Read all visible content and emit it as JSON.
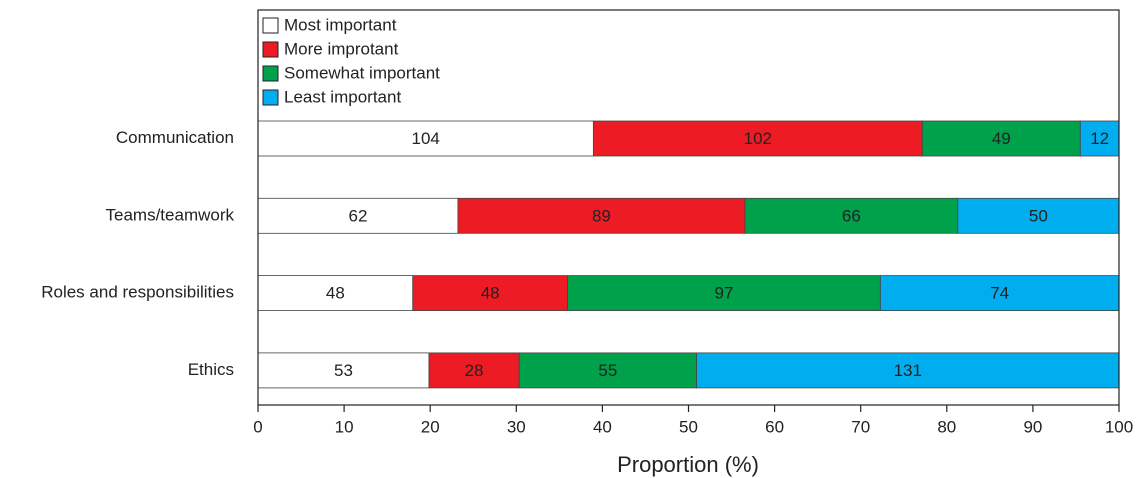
{
  "chart_data": {
    "type": "bar",
    "orientation": "horizontal",
    "stacked": "percent",
    "categories": [
      "Communication",
      "Teams/teamwork",
      "Roles and responsibilities",
      "Ethics"
    ],
    "series": [
      {
        "name": "Most important",
        "color": "#ffffff",
        "values": [
          104,
          62,
          48,
          53
        ]
      },
      {
        "name": "More improtant",
        "color": "#ed1c24",
        "values": [
          102,
          89,
          48,
          28
        ]
      },
      {
        "name": "Somewhat important",
        "color": "#00a14b",
        "values": [
          49,
          66,
          97,
          55
        ]
      },
      {
        "name": "Least important",
        "color": "#00aeef",
        "values": [
          12,
          50,
          74,
          131
        ]
      }
    ],
    "xlabel": "Proportion (%)",
    "xlim": [
      0,
      100
    ],
    "xticks": [
      0,
      10,
      20,
      30,
      40,
      50,
      60,
      70,
      80,
      90,
      100
    ],
    "legend": "upper left"
  }
}
